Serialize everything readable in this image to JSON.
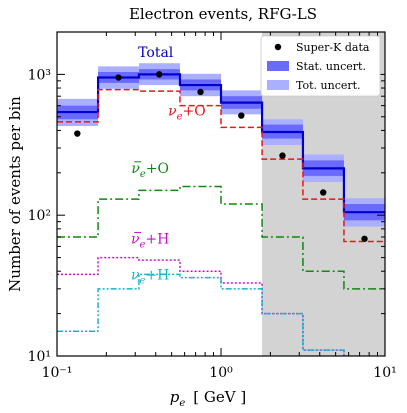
{
  "chart_data": {
    "type": "line",
    "title": "Electron events, RFG-LS",
    "xlabel": "p_e  [ GeV ]",
    "xlabel_parts": {
      "symbol": "p",
      "sub": "e",
      "unit": "[ GeV ]"
    },
    "ylabel": "Number of events per bin",
    "xscale": "log",
    "yscale": "log",
    "xlim": [
      0.1,
      10
    ],
    "ylim": [
      10,
      2000
    ],
    "x_ticks": [
      0.1,
      1,
      10
    ],
    "x_tick_labels": [
      "10⁻¹",
      "10⁰",
      "10¹"
    ],
    "y_ticks": [
      10,
      100,
      1000
    ],
    "y_tick_labels": [
      "10¹",
      "10²",
      "10³"
    ],
    "shaded_region": {
      "x": [
        1.78,
        10
      ],
      "color": "#d3d3d3"
    },
    "bin_edges": [
      0.1,
      0.178,
      0.316,
      0.562,
      1.0,
      1.78,
      3.16,
      5.62,
      10
    ],
    "series": [
      {
        "name": "Total",
        "style": "solid",
        "color": "#0000cc",
        "values": [
          540,
          950,
          1000,
          840,
          630,
          390,
          215,
          105
        ],
        "label_pos": {
          "x": 0.4,
          "y": 1330
        }
      },
      {
        "name": "ν_e+O",
        "label_main": "ν",
        "label_sub": "e",
        "label_rest": "+O",
        "bar": false,
        "style": "dashed",
        "color": "#e8161b",
        "values": [
          460,
          780,
          760,
          600,
          420,
          250,
          130,
          65
        ],
        "label_pos": {
          "x": 0.62,
          "y": 510
        }
      },
      {
        "name": "ν̄_e+O",
        "label_main": "ν",
        "label_sub": "e",
        "label_rest": "+O",
        "bar": true,
        "style": "dashdot",
        "color": "#118811",
        "values": [
          70,
          130,
          150,
          160,
          120,
          70,
          40,
          30
        ],
        "label_pos": {
          "x": 0.37,
          "y": 200
        }
      },
      {
        "name": "ν̄_e+H",
        "label_main": "ν",
        "label_sub": "e",
        "label_rest": "+H",
        "bar": true,
        "style": "dotted",
        "color": "#c812c8",
        "values": [
          38,
          50,
          48,
          40,
          33,
          20,
          11,
          7
        ],
        "label_pos": {
          "x": 0.37,
          "y": 63
        }
      },
      {
        "name": "ν_e+H",
        "label_main": "ν",
        "label_sub": "e",
        "label_rest": "+H",
        "bar": false,
        "style": "dashdotdot",
        "color": "#18b4c8",
        "values": [
          15,
          30,
          38,
          36,
          30,
          20,
          11,
          7
        ],
        "label_pos": {
          "x": 0.37,
          "y": 35
        }
      }
    ],
    "stat_band": {
      "name": "Stat. uncert.",
      "color": "#6a6aff",
      "values": [
        [
          480,
          600
        ],
        [
          870,
          1040
        ],
        [
          920,
          1090
        ],
        [
          770,
          920
        ],
        [
          570,
          700
        ],
        [
          350,
          440
        ],
        [
          190,
          245
        ],
        [
          92,
          120
        ]
      ]
    },
    "tot_band": {
      "name": "Tot. uncert.",
      "color": "#aab0ff",
      "values": [
        [
          430,
          670
        ],
        [
          790,
          1140
        ],
        [
          840,
          1200
        ],
        [
          700,
          1010
        ],
        [
          520,
          770
        ],
        [
          315,
          480
        ],
        [
          172,
          270
        ],
        [
          83,
          132
        ]
      ]
    },
    "data_points": {
      "name": "Super-K data",
      "x": [
        0.133,
        0.237,
        0.42,
        0.75,
        1.33,
        2.37,
        4.2,
        7.5
      ],
      "y": [
        380,
        950,
        1000,
        750,
        510,
        265,
        145,
        68
      ]
    },
    "legend": {
      "position": "top-right",
      "entries": [
        "Super-K data",
        "Stat. uncert.",
        "Tot. uncert."
      ]
    }
  }
}
